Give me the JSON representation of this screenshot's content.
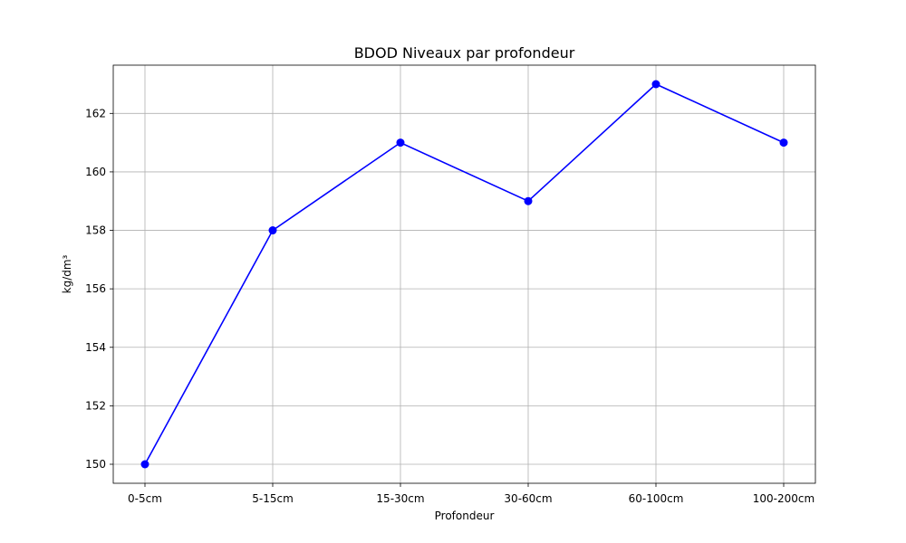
{
  "chart_data": {
    "type": "line",
    "title": "BDOD Niveaux par profondeur",
    "xlabel": "Profondeur",
    "ylabel": "kg/dm³",
    "categories": [
      "0-5cm",
      "5-15cm",
      "15-30cm",
      "30-60cm",
      "60-100cm",
      "100-200cm"
    ],
    "series": [
      {
        "values": [
          150,
          158,
          161,
          159,
          163,
          161
        ],
        "color": "#0000ff",
        "marker": "circle"
      }
    ],
    "yticks": [
      150,
      152,
      154,
      156,
      158,
      160,
      162
    ],
    "ylim": [
      149.35,
      163.65
    ],
    "grid": true
  }
}
